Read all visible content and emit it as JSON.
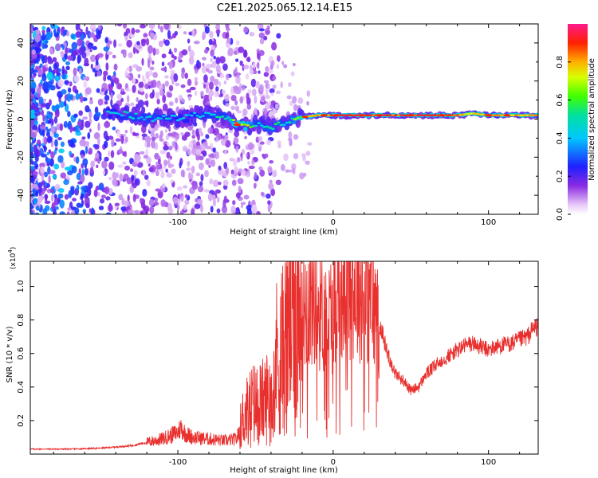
{
  "title": "C2E1.2025.065.12.14.E15",
  "colors": {
    "snr_line": "#e8302e",
    "axis": "#000000",
    "background": "#ffffff"
  },
  "chart_data": [
    {
      "type": "heatmap",
      "title": "C2E1.2025.065.12.14.E15",
      "xlabel": "Height of straight line (km)",
      "ylabel": "Frequency (Hz)",
      "xlim": [
        -195,
        132
      ],
      "ylim": [
        -50,
        50
      ],
      "xticks": [
        -100,
        0,
        100
      ],
      "yticks": [
        -40,
        -20,
        0,
        20,
        40
      ],
      "grid": false,
      "colorbar": {
        "label": "Normalized spectral amplitude",
        "range": [
          0,
          1
        ],
        "ticks": [
          0.0,
          0.2,
          0.4,
          0.6,
          0.8
        ],
        "colormap": "rainbow (white → purple → blue → cyan → green → yellow → red → magenta)"
      },
      "ridge": {
        "description": "dominant frequency line",
        "x": [
          -140,
          -130,
          -120,
          -110,
          -100,
          -90,
          -80,
          -70,
          -60,
          -50,
          -40,
          -30,
          -20,
          -10,
          0,
          20,
          40,
          60,
          80,
          90,
          100,
          110,
          130
        ],
        "frequency_hz": [
          3,
          2,
          0,
          1,
          0,
          2,
          3,
          1,
          -4,
          -3,
          -4,
          -2,
          1,
          2,
          2,
          2,
          2,
          2,
          2,
          3,
          2,
          2,
          2
        ],
        "amplitude": [
          0.45,
          0.5,
          0.5,
          0.5,
          0.45,
          0.45,
          0.5,
          0.5,
          0.9,
          0.5,
          0.55,
          0.5,
          0.75,
          0.85,
          0.95,
          0.95,
          0.95,
          0.95,
          0.95,
          0.8,
          0.9,
          0.85,
          0.85
        ]
      }
    },
    {
      "type": "line",
      "xlabel": "Height of straight line (km)",
      "ylabel": "SNR (10 * v/v)",
      "yscale_label": "(x10",
      "yscale_exp": "4",
      "xlim": [
        -195,
        132
      ],
      "ylim": [
        0,
        11500
      ],
      "xticks": [
        -100,
        0,
        100
      ],
      "yticks": [
        0.2,
        0.4,
        0.6,
        0.8,
        1.0
      ],
      "grid": false,
      "series": [
        {
          "x": [
            -195,
            -170,
            -150,
            -130,
            -120,
            -110,
            -105,
            -100,
            -98,
            -95,
            -90,
            -80,
            -70,
            -62,
            -58,
            -52,
            -48,
            -44,
            -40,
            -36,
            -32,
            -28,
            -24,
            -20,
            -16,
            -12,
            -8,
            -4,
            0,
            4,
            8,
            12,
            16,
            20,
            25,
            30,
            35,
            40,
            45,
            50,
            55,
            60,
            65,
            70,
            75,
            80,
            85,
            90,
            95,
            100,
            105,
            110,
            115,
            120,
            125,
            130
          ],
          "y": [
            300,
            300,
            350,
            500,
            700,
            900,
            1100,
            1300,
            1600,
            1200,
            1000,
            900,
            800,
            900,
            2200,
            3000,
            3000,
            3200,
            3800,
            6000,
            6200,
            8000,
            8600,
            8800,
            9000,
            9200,
            8600,
            8000,
            8600,
            9800,
            10200,
            10000,
            9800,
            9600,
            9000,
            7800,
            6000,
            4800,
            4400,
            3800,
            4000,
            4800,
            5200,
            5600,
            5900,
            6200,
            6500,
            6600,
            6400,
            6200,
            6400,
            6500,
            6600,
            6800,
            7000,
            7600
          ],
          "color": "#e8302e"
        }
      ]
    }
  ]
}
